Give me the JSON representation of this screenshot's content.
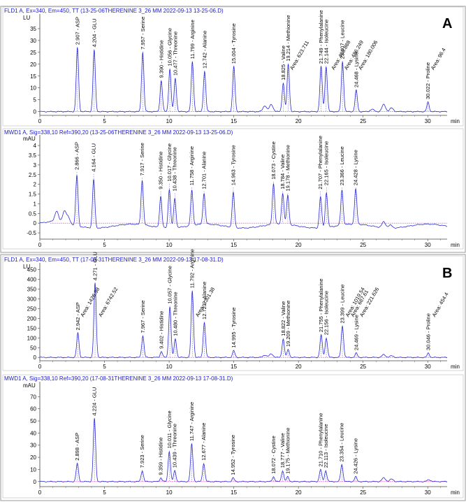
{
  "panel_labels": [
    "A",
    "B"
  ],
  "colors": {
    "trace": "#2b2bd6",
    "baseline": "#ff33cc",
    "frame": "#444444",
    "title": "#1a1ad0",
    "peak_marker": "#2b2bd6"
  },
  "chart_data": [
    {
      "type": "line",
      "title": "FLD1 A, Ex=340, Em=450, TT (13-25-06THERENINE 3_26 MM 2022-09-13 13-25-06.D)",
      "ylabel": "LU",
      "xlabel": "min",
      "xlim": [
        0,
        31.5
      ],
      "ylim": [
        -1,
        40
      ],
      "yticks": [
        0,
        5,
        10,
        15,
        20,
        25,
        30,
        35
      ],
      "xticks": [
        0,
        5,
        10,
        15,
        20,
        25,
        30
      ],
      "peaks": [
        {
          "rt": 2.907,
          "label": "2.907 - ASP",
          "h": 27
        },
        {
          "rt": 4.204,
          "label": "4.204 - GLU",
          "h": 26
        },
        {
          "rt": 7.957,
          "label": "7.957 - Serine",
          "h": 25
        },
        {
          "rt": 9.39,
          "label": "9.390 - Histidine",
          "h": 13
        },
        {
          "rt": 10.056,
          "label": "10.056 - Glycine",
          "h": 18
        },
        {
          "rt": 10.477,
          "label": "10.477 - Threonine",
          "h": 14
        },
        {
          "rt": 11.799,
          "label": "11.799 - Arginine",
          "h": 21
        },
        {
          "rt": 12.742,
          "label": "12.742 - Alanine",
          "h": 17
        },
        {
          "rt": 15.004,
          "label": "15.004 - Tyrosine",
          "h": 19
        },
        {
          "rt": 18.825,
          "label": "18.825 - Valine",
          "h": 12
        },
        {
          "rt": 19.214,
          "label": "19.214 - Methionine",
          "h": 20
        },
        {
          "rt": 21.749,
          "label": "21.749 - Phenylalanine",
          "h": 19
        },
        {
          "rt": 22.144,
          "label": "22.144 - Isoleucine",
          "h": 19
        },
        {
          "rt": 23.407,
          "label": "23.407 - Leucine",
          "h": 21
        },
        {
          "rt": 24.468,
          "label": "24.468 - Lysine",
          "h": 9
        },
        {
          "rt": 30.022,
          "label": "30.022 - Proline",
          "h": 4
        }
      ],
      "annotations": [
        {
          "rt": 19.4,
          "label": "Area: 623.711"
        },
        {
          "rt": 22.6,
          "label": "Area: 488.888"
        },
        {
          "rt": 23.6,
          "label": "Area: 486.249"
        },
        {
          "rt": 24.7,
          "label": "Area: 180.006"
        },
        {
          "rt": 30.3,
          "label": "Area: 96.4"
        }
      ],
      "minor_peaks": [
        {
          "rt": 17.4,
          "h": 2.5
        },
        {
          "rt": 17.9,
          "h": 3
        },
        {
          "rt": 26.6,
          "h": 3
        },
        {
          "rt": 27.2,
          "h": 1.5
        },
        {
          "rt": 25.7,
          "h": 1
        }
      ]
    },
    {
      "type": "line",
      "title": "MWD1 A, Sig=338,10 Ref=390,20 (13-25-06THERENINE 3_26 MM 2022-09-13 13-25-06.D)",
      "ylabel": "mAU",
      "xlabel": "min",
      "xlim": [
        0,
        31.5
      ],
      "ylim": [
        -0.75,
        4.4
      ],
      "yticks": [
        -0.5,
        0,
        0.5,
        1,
        1.5,
        2,
        2.5,
        3,
        3.5,
        4
      ],
      "xticks": [
        0,
        5,
        10,
        15,
        20,
        25,
        30
      ],
      "peaks": [
        {
          "rt": 2.866,
          "label": "2.866 - ASP",
          "h": 2.6
        },
        {
          "rt": 4.164,
          "label": "4.164 - GLU",
          "h": 2.5
        },
        {
          "rt": 7.917,
          "label": "7.917 - Serine",
          "h": 2.3
        },
        {
          "rt": 9.35,
          "label": "9.350 - Histidine",
          "h": 1.6
        },
        {
          "rt": 10.017,
          "label": "10.017 - Glycine",
          "h": 2.0
        },
        {
          "rt": 10.438,
          "label": "10.438 - Threonine",
          "h": 1.5
        },
        {
          "rt": 11.758,
          "label": "11.758 - Arginine",
          "h": 1.8
        },
        {
          "rt": 12.701,
          "label": "12.701 - Alanine",
          "h": 1.6
        },
        {
          "rt": 14.963,
          "label": "14.963 - Tyrosine",
          "h": 1.8
        },
        {
          "rt": 18.073,
          "label": "18.073 - Cystine",
          "h": 2.1
        },
        {
          "rt": 18.784,
          "label": "18.784 - Valine",
          "h": 1.6
        },
        {
          "rt": 19.178,
          "label": "19.178 - Methionine",
          "h": 1.5
        },
        {
          "rt": 21.707,
          "label": "21.707 - Phenylalanine",
          "h": 1.6
        },
        {
          "rt": 22.165,
          "label": "22.165 - Isoleucine",
          "h": 1.8
        },
        {
          "rt": 23.366,
          "label": "23.366 - Leucine",
          "h": 1.8
        },
        {
          "rt": 24.428,
          "label": "24.428 - Lysine",
          "h": 1.8
        }
      ],
      "annotations": [],
      "minor_peaks": [
        {
          "rt": 1.3,
          "h": 0.55
        },
        {
          "rt": 1.9,
          "h": 0.6
        },
        {
          "rt": 2.2,
          "h": 0.3
        },
        {
          "rt": 26.6,
          "h": 0.3
        },
        {
          "rt": 27.1,
          "h": 0.15
        }
      ]
    },
    {
      "type": "line",
      "title": "FLD1 A, Ex=340, Em=450, TT (17-08-31THERENINE 3_26 MM 2022-09-13 17-08-31.D)",
      "ylabel": "LU",
      "xlabel": "min",
      "xlim": [
        0,
        31.5
      ],
      "ylim": [
        -10,
        470
      ],
      "yticks": [
        0,
        50,
        100,
        150,
        200,
        250,
        300,
        350,
        400,
        450
      ],
      "xticks": [
        0,
        5,
        10,
        15,
        20,
        25,
        30
      ],
      "peaks": [
        {
          "rt": 2.942,
          "label": "2.942 - ASP",
          "h": 125
        },
        {
          "rt": 4.271,
          "label": "4.271 - GLU",
          "h": 380
        },
        {
          "rt": 7.967,
          "label": "7.967 - Serine",
          "h": 110
        },
        {
          "rt": 9.402,
          "label": "9.402 - Histidine",
          "h": 30
        },
        {
          "rt": 10.057,
          "label": "10.057 - Glycine",
          "h": 260
        },
        {
          "rt": 10.48,
          "label": "10.480 - Threonine",
          "h": 95
        },
        {
          "rt": 11.792,
          "label": "11.792 - Arginine",
          "h": 340
        },
        {
          "rt": 12.723,
          "label": "12.723 - Alanine",
          "h": 180
        },
        {
          "rt": 14.995,
          "label": "14.995 - Tyrosine",
          "h": 35
        },
        {
          "rt": 18.822,
          "label": "18.822 - Valine",
          "h": 95
        },
        {
          "rt": 19.209,
          "label": "19.209 - Methionine",
          "h": 40
        },
        {
          "rt": 21.755,
          "label": "21.755 - Phenylalanine",
          "h": 115
        },
        {
          "rt": 22.156,
          "label": "22.156 - Isoleucine",
          "h": 100
        },
        {
          "rt": 23.399,
          "label": "23.399 - Leucine",
          "h": 160
        },
        {
          "rt": 24.469,
          "label": "24.469 - Lysine",
          "h": 22
        },
        {
          "rt": 30.046,
          "label": "30.046 - Proline",
          "h": 22
        }
      ],
      "annotations": [
        {
          "rt": 3.2,
          "label": "Area: 1426.98"
        },
        {
          "rt": 4.6,
          "label": "Area: 6742.52"
        },
        {
          "rt": 12.1,
          "label": "Area: 3301.38"
        },
        {
          "rt": 23.7,
          "label": "Area: 1019.54"
        },
        {
          "rt": 24.1,
          "label": "Area: 687.61"
        },
        {
          "rt": 24.8,
          "label": "Area: 221.626"
        },
        {
          "rt": 30.4,
          "label": "Area: 454.4"
        }
      ],
      "minor_peaks": [
        {
          "rt": 17.4,
          "h": 12
        },
        {
          "rt": 17.9,
          "h": 18
        },
        {
          "rt": 26.6,
          "h": 14
        },
        {
          "rt": 27.2,
          "h": 8
        }
      ]
    },
    {
      "type": "line",
      "title": "MWD1 A, Sig=338,10 Ref=390,20 (17-08-31THERENINE 3_26 MM 2022-09-13 17-08-31.D)",
      "ylabel": "mAU",
      "xlabel": "min",
      "xlim": [
        0,
        31.5
      ],
      "ylim": [
        -3,
        80
      ],
      "yticks": [
        0,
        10,
        20,
        30,
        40,
        50,
        60,
        70
      ],
      "xticks": [
        0,
        5,
        10,
        15,
        20,
        25,
        30
      ],
      "peaks": [
        {
          "rt": 2.898,
          "label": "2.898 - ASP",
          "h": 15
        },
        {
          "rt": 4.224,
          "label": "4.224 - GLU",
          "h": 52
        },
        {
          "rt": 7.923,
          "label": "7.923 - Serine",
          "h": 9
        },
        {
          "rt": 9.359,
          "label": "9.359 - Histidine",
          "h": 3
        },
        {
          "rt": 10.011,
          "label": "10.011 - Glycine",
          "h": 25
        },
        {
          "rt": 10.439,
          "label": "10.439 - Threonine",
          "h": 9
        },
        {
          "rt": 11.747,
          "label": "11.747 - Arginine",
          "h": 31
        },
        {
          "rt": 12.677,
          "label": "12.677 - Alanine",
          "h": 15
        },
        {
          "rt": 14.952,
          "label": "14.952 - Tyrosine",
          "h": 3
        },
        {
          "rt": 18.072,
          "label": "18.072 - Cystine",
          "h": 4
        },
        {
          "rt": 18.777,
          "label": "18.777 - Valine",
          "h": 9
        },
        {
          "rt": 19.175,
          "label": "19.175 - Methionine",
          "h": 4
        },
        {
          "rt": 21.71,
          "label": "21.710 - Phenylalanine",
          "h": 10
        },
        {
          "rt": 22.113,
          "label": "22.113 - Isoleucine",
          "h": 9
        },
        {
          "rt": 23.354,
          "label": "23.354 - Leucine",
          "h": 14
        },
        {
          "rt": 24.426,
          "label": "24.426 - Lysine",
          "h": 4
        }
      ],
      "annotations": [],
      "minor_peaks": [
        {
          "rt": 26.6,
          "h": 3
        },
        {
          "rt": 27.2,
          "h": 2
        },
        {
          "rt": 30.1,
          "h": 1.5
        }
      ]
    }
  ]
}
